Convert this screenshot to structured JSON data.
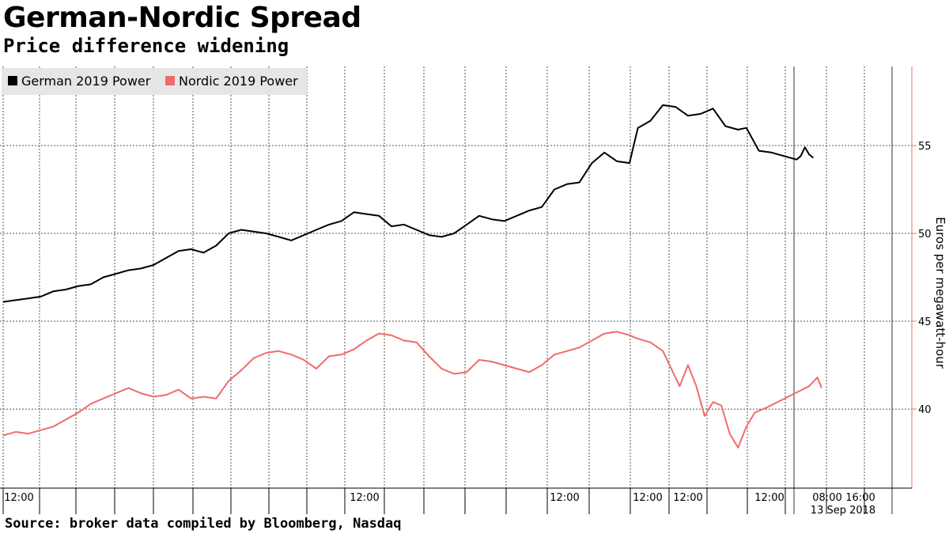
{
  "header": {
    "title": "German-Nordic Spread",
    "subtitle": "Price difference widening"
  },
  "footer": {
    "source": "Source: broker data compiled by Bloomberg, Nasdaq"
  },
  "colors": {
    "german": "#000000",
    "nordic": "#f26b6b",
    "right_axis": "#e8716a",
    "grid": "#555555"
  },
  "chart_data": {
    "type": "line",
    "title": "German-Nordic Spread",
    "subtitle": "Price difference widening",
    "ylabel": "Euros per megawatt-hour",
    "ylim": [
      35.5,
      59.5
    ],
    "y_ticks": [
      40,
      45,
      50,
      55
    ],
    "x_tick_labels": [
      "12:00",
      "12:00",
      "12:00",
      "12:00",
      "12:00",
      "12:00",
      "08:00",
      "16:00"
    ],
    "x_date_label": "13 Sep 2018",
    "legend": "top-left",
    "grid": true,
    "series": [
      {
        "name": "German 2019 Power",
        "color": "#000000",
        "points": [
          [
            0,
            46.1
          ],
          [
            3,
            46.2
          ],
          [
            6,
            46.3
          ],
          [
            9,
            46.4
          ],
          [
            12,
            46.7
          ],
          [
            15,
            46.8
          ],
          [
            18,
            47.0
          ],
          [
            21,
            47.1
          ],
          [
            24,
            47.5
          ],
          [
            27,
            47.7
          ],
          [
            30,
            47.9
          ],
          [
            33,
            48.0
          ],
          [
            36,
            48.2
          ],
          [
            39,
            48.6
          ],
          [
            42,
            49.0
          ],
          [
            45,
            49.1
          ],
          [
            48,
            48.9
          ],
          [
            51,
            49.3
          ],
          [
            54,
            50.0
          ],
          [
            57,
            50.2
          ],
          [
            60,
            50.1
          ],
          [
            63,
            50.0
          ],
          [
            66,
            49.8
          ],
          [
            69,
            49.6
          ],
          [
            72,
            49.9
          ],
          [
            75,
            50.2
          ],
          [
            78,
            50.5
          ],
          [
            81,
            50.7
          ],
          [
            84,
            51.2
          ],
          [
            87,
            51.1
          ],
          [
            90,
            51.0
          ],
          [
            93,
            50.4
          ],
          [
            96,
            50.5
          ],
          [
            99,
            50.2
          ],
          [
            102,
            49.9
          ],
          [
            105,
            49.8
          ],
          [
            108,
            50.0
          ],
          [
            111,
            50.5
          ],
          [
            114,
            51.0
          ],
          [
            117,
            50.8
          ],
          [
            120,
            50.7
          ],
          [
            123,
            51.0
          ],
          [
            126,
            51.3
          ],
          [
            129,
            51.5
          ],
          [
            132,
            52.5
          ],
          [
            135,
            52.8
          ],
          [
            138,
            52.9
          ],
          [
            141,
            54.0
          ],
          [
            144,
            54.6
          ],
          [
            147,
            54.1
          ],
          [
            150,
            54.0
          ],
          [
            152,
            56.0
          ],
          [
            155,
            56.4
          ],
          [
            158,
            57.3
          ],
          [
            161,
            57.2
          ],
          [
            164,
            56.7
          ],
          [
            167,
            56.8
          ],
          [
            170,
            57.1
          ],
          [
            173,
            56.1
          ],
          [
            176,
            55.9
          ],
          [
            178,
            56.0
          ],
          [
            181,
            54.7
          ],
          [
            184,
            54.6
          ],
          [
            190,
            54.2
          ],
          [
            191,
            54.4
          ],
          [
            192,
            54.9
          ],
          [
            193,
            54.5
          ],
          [
            194,
            54.3
          ]
        ]
      },
      {
        "name": "Nordic 2019 Power",
        "color": "#f26b6b",
        "points": [
          [
            0,
            38.5
          ],
          [
            3,
            38.7
          ],
          [
            6,
            38.6
          ],
          [
            9,
            38.8
          ],
          [
            12,
            39.0
          ],
          [
            15,
            39.4
          ],
          [
            18,
            39.8
          ],
          [
            21,
            40.3
          ],
          [
            24,
            40.6
          ],
          [
            27,
            40.9
          ],
          [
            30,
            41.2
          ],
          [
            33,
            40.9
          ],
          [
            36,
            40.7
          ],
          [
            39,
            40.8
          ],
          [
            42,
            41.1
          ],
          [
            45,
            40.6
          ],
          [
            48,
            40.7
          ],
          [
            51,
            40.6
          ],
          [
            54,
            41.6
          ],
          [
            57,
            42.2
          ],
          [
            60,
            42.9
          ],
          [
            63,
            43.2
          ],
          [
            66,
            43.3
          ],
          [
            69,
            43.1
          ],
          [
            72,
            42.8
          ],
          [
            75,
            42.3
          ],
          [
            78,
            43.0
          ],
          [
            81,
            43.1
          ],
          [
            84,
            43.4
          ],
          [
            87,
            43.9
          ],
          [
            90,
            44.3
          ],
          [
            93,
            44.2
          ],
          [
            96,
            43.9
          ],
          [
            99,
            43.8
          ],
          [
            102,
            43.0
          ],
          [
            105,
            42.3
          ],
          [
            108,
            42.0
          ],
          [
            111,
            42.1
          ],
          [
            114,
            42.8
          ],
          [
            117,
            42.7
          ],
          [
            120,
            42.5
          ],
          [
            123,
            42.3
          ],
          [
            126,
            42.1
          ],
          [
            129,
            42.5
          ],
          [
            132,
            43.1
          ],
          [
            135,
            43.3
          ],
          [
            138,
            43.5
          ],
          [
            141,
            43.9
          ],
          [
            144,
            44.3
          ],
          [
            147,
            44.4
          ],
          [
            150,
            44.2
          ],
          [
            152,
            44.0
          ],
          [
            155,
            43.8
          ],
          [
            158,
            43.3
          ],
          [
            160,
            42.3
          ],
          [
            162,
            41.3
          ],
          [
            164,
            42.5
          ],
          [
            166,
            41.3
          ],
          [
            168,
            39.6
          ],
          [
            170,
            40.4
          ],
          [
            172,
            40.2
          ],
          [
            174,
            38.6
          ],
          [
            176,
            37.8
          ],
          [
            178,
            39.0
          ],
          [
            180,
            39.8
          ],
          [
            183,
            40.1
          ],
          [
            188,
            40.7
          ],
          [
            193,
            41.3
          ],
          [
            195,
            41.8
          ],
          [
            196,
            41.2
          ]
        ]
      }
    ]
  }
}
